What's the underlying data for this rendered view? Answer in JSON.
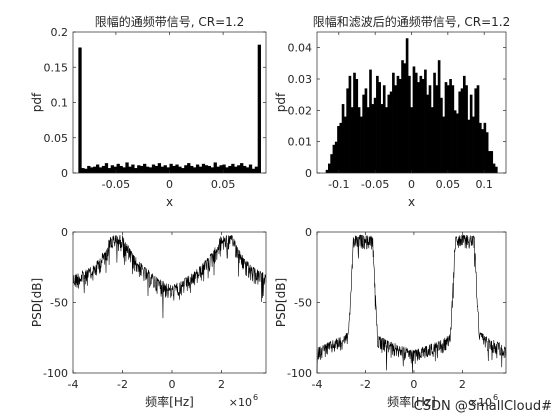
{
  "watermark": "CSDN @SmallCloud#",
  "chart_data": [
    {
      "type": "bar",
      "title": "限幅的通频带信号, CR=1.2",
      "xlabel": "x",
      "ylabel": "pdf",
      "xlim": [
        -0.09,
        0.09
      ],
      "ylim": [
        0,
        0.2
      ],
      "xticks": [
        -0.05,
        0,
        0.05
      ],
      "xtick_labels": [
        "-0.05",
        "0",
        "0.05"
      ],
      "yticks": [
        0,
        0.05,
        0.1,
        0.15,
        0.2
      ],
      "ytick_labels": [
        "0",
        "0.05",
        "0.1",
        "0.15",
        "0.2"
      ],
      "grid": false,
      "bin_range": [
        -0.085,
        0.085
      ],
      "values": [
        0.178,
        0.007,
        0.006,
        0.01,
        0.008,
        0.009,
        0.012,
        0.008,
        0.01,
        0.014,
        0.007,
        0.011,
        0.009,
        0.013,
        0.01,
        0.008,
        0.015,
        0.009,
        0.012,
        0.007,
        0.011,
        0.01,
        0.013,
        0.009,
        0.008,
        0.012,
        0.01,
        0.014,
        0.009,
        0.011,
        0.008,
        0.013,
        0.01,
        0.012,
        0.009,
        0.007,
        0.011,
        0.014,
        0.01,
        0.008,
        0.012,
        0.009,
        0.013,
        0.011,
        0.01,
        0.008,
        0.015,
        0.009,
        0.011,
        0.012,
        0.008,
        0.01,
        0.013,
        0.009,
        0.011,
        0.014,
        0.01,
        0.008,
        0.012,
        0.006,
        0.009,
        0.182
      ]
    },
    {
      "type": "bar",
      "title": "限幅和滤波后的通频带信号, CR=1.2",
      "xlabel": "x",
      "ylabel": "pdf",
      "xlim": [
        -0.13,
        0.13
      ],
      "ylim": [
        0,
        0.045
      ],
      "xticks": [
        -0.1,
        -0.05,
        0,
        0.05,
        0.1
      ],
      "xtick_labels": [
        "-0.1",
        "-0.05",
        "0",
        "0.05",
        "0.1"
      ],
      "yticks": [
        0,
        0.01,
        0.02,
        0.03,
        0.04
      ],
      "ytick_labels": [
        "0",
        "0.01",
        "0.02",
        "0.03",
        "0.04"
      ],
      "grid": false,
      "bin_range": [
        -0.118,
        0.118
      ],
      "values": [
        0.001,
        0.003,
        0.006,
        0.009,
        0.01,
        0.015,
        0.016,
        0.022,
        0.018,
        0.027,
        0.031,
        0.021,
        0.032,
        0.03,
        0.021,
        0.018,
        0.025,
        0.027,
        0.021,
        0.033,
        0.022,
        0.024,
        0.031,
        0.029,
        0.022,
        0.028,
        0.021,
        0.025,
        0.026,
        0.032,
        0.028,
        0.031,
        0.03,
        0.036,
        0.035,
        0.043,
        0.031,
        0.021,
        0.034,
        0.032,
        0.029,
        0.031,
        0.03,
        0.033,
        0.025,
        0.028,
        0.021,
        0.032,
        0.028,
        0.036,
        0.024,
        0.018,
        0.029,
        0.028,
        0.03,
        0.028,
        0.02,
        0.019,
        0.026,
        0.027,
        0.031,
        0.028,
        0.017,
        0.025,
        0.018,
        0.027,
        0.028,
        0.016,
        0.014,
        0.016,
        0.013,
        0.007,
        0.007,
        0.003,
        0.002
      ]
    },
    {
      "type": "line",
      "title": "",
      "xlabel": "频率[Hz]",
      "ylabel": "PSD[dB]",
      "xlim": [
        -4000000,
        3800000
      ],
      "ylim": [
        -100,
        0
      ],
      "xticks": [
        -4000000,
        -2000000,
        0,
        2000000
      ],
      "xtick_labels": [
        "-4",
        "-2",
        "0",
        "2"
      ],
      "x_exponent_label": "×10",
      "x_exponent_power": "6",
      "yticks": [
        -100,
        -50,
        0
      ],
      "ytick_labels": [
        "-100",
        "-50",
        "0"
      ],
      "grid": false,
      "series": [
        {
          "color": "#000000",
          "envelope_x": [
            -4000000,
            -3500000,
            -3200000,
            -3000000,
            -2700000,
            -2500000,
            -2300000,
            -2000000,
            -1700000,
            -1500000,
            -1200000,
            -900000,
            -600000,
            -300000,
            0,
            300000,
            600000,
            900000,
            1200000,
            1500000,
            1700000,
            2000000,
            2300000,
            2500000,
            2700000,
            3000000,
            3200000,
            3500000,
            3800000
          ],
          "envelope_db": [
            -30,
            -27,
            -24,
            -20,
            -12,
            -3,
            -2,
            -2,
            -12,
            -17,
            -23,
            -28,
            -32,
            -35,
            -38,
            -35,
            -32,
            -28,
            -23,
            -17,
            -12,
            -2,
            -2,
            -3,
            -12,
            -20,
            -24,
            -27,
            -30
          ],
          "ripple_db": 12
        }
      ]
    },
    {
      "type": "line",
      "title": "",
      "xlabel": "频率[Hz]",
      "ylabel": "PSD[dB]",
      "xlim": [
        -4000000,
        3800000
      ],
      "ylim": [
        -100,
        0
      ],
      "xticks": [
        -4000000,
        -2000000,
        0,
        2000000
      ],
      "xtick_labels": [
        "-4",
        "-2",
        "0",
        "2"
      ],
      "x_exponent_label": "×10",
      "x_exponent_power": "6",
      "yticks": [
        -100,
        -50,
        0
      ],
      "ytick_labels": [
        "-100",
        "-50",
        "0"
      ],
      "grid": false,
      "series": [
        {
          "color": "#000000",
          "envelope_x": [
            -4000000,
            -3500000,
            -3000000,
            -2700000,
            -2600000,
            -2500000,
            -2200000,
            -1700000,
            -1600000,
            -1500000,
            -1200000,
            -600000,
            0,
            600000,
            1200000,
            1500000,
            1600000,
            1700000,
            2200000,
            2500000,
            2600000,
            2700000,
            3000000,
            3500000,
            3800000
          ],
          "envelope_db": [
            -82,
            -78,
            -74,
            -70,
            -40,
            -3,
            -2,
            -3,
            -40,
            -72,
            -76,
            -80,
            -84,
            -80,
            -76,
            -72,
            -40,
            -3,
            -2,
            -3,
            -40,
            -70,
            -74,
            -78,
            -82
          ],
          "ripple_db": 10
        }
      ]
    }
  ]
}
